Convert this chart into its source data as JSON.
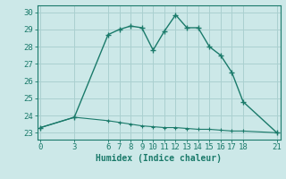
{
  "xlabel": "Humidex (Indice chaleur)",
  "bg_color": "#cce8e8",
  "grid_color": "#aad0d0",
  "line_color": "#1a7a6a",
  "upper_x": [
    0,
    3,
    6,
    7,
    8,
    9,
    10,
    11,
    12,
    13,
    14,
    15,
    16,
    17,
    18,
    21
  ],
  "upper_y": [
    23.3,
    23.9,
    28.7,
    29.0,
    29.2,
    29.1,
    27.8,
    28.9,
    29.85,
    29.1,
    29.1,
    28.0,
    27.5,
    26.5,
    24.8,
    23.0
  ],
  "lower_x": [
    0,
    3,
    6,
    7,
    8,
    9,
    10,
    11,
    12,
    13,
    14,
    15,
    16,
    17,
    18,
    21
  ],
  "lower_y": [
    23.3,
    23.9,
    23.7,
    23.6,
    23.5,
    23.4,
    23.35,
    23.3,
    23.3,
    23.25,
    23.2,
    23.2,
    23.15,
    23.1,
    23.1,
    23.0
  ],
  "xticks": [
    0,
    3,
    6,
    7,
    8,
    9,
    10,
    11,
    12,
    13,
    14,
    15,
    16,
    17,
    18,
    21
  ],
  "yticks": [
    23,
    24,
    25,
    26,
    27,
    28,
    29,
    30
  ],
  "xlim": [
    -0.3,
    21.3
  ],
  "ylim": [
    22.6,
    30.4
  ],
  "xlabel_fontsize": 7,
  "tick_fontsize": 6.5
}
